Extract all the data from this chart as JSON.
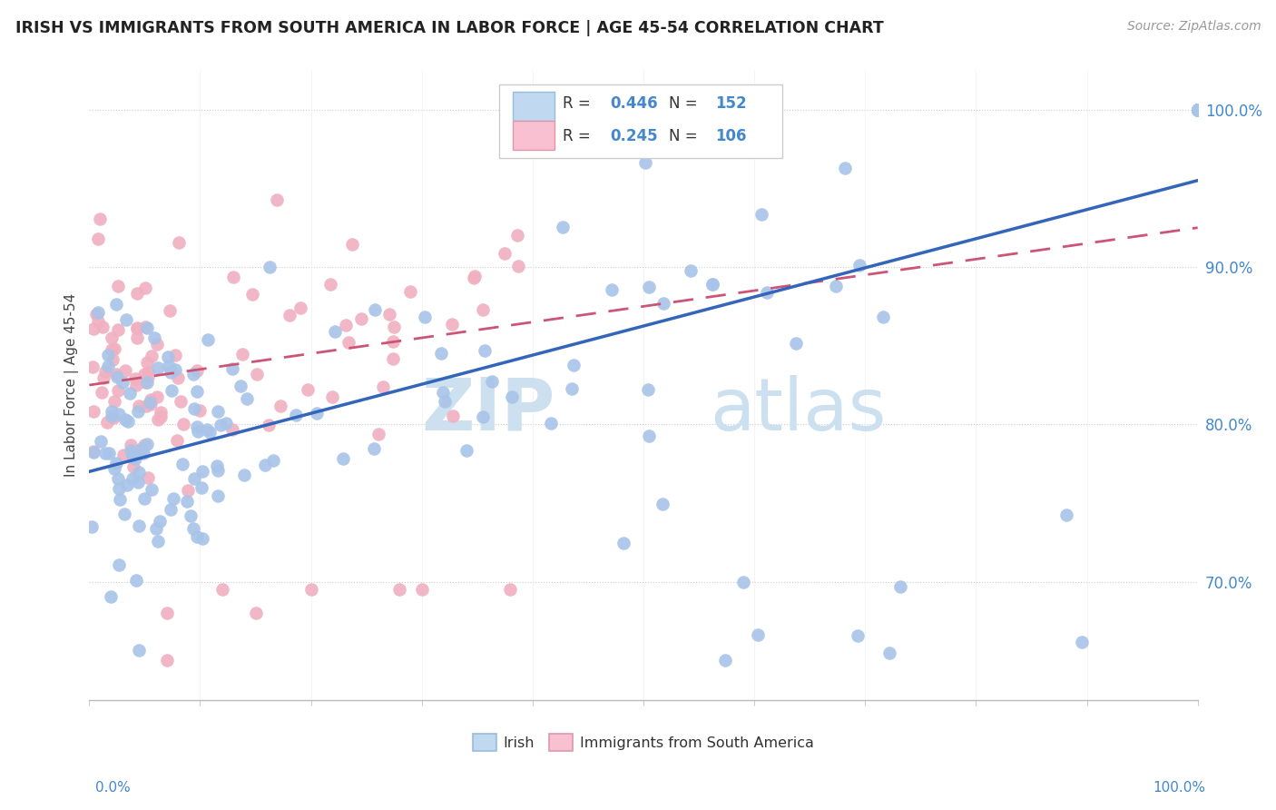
{
  "title": "IRISH VS IMMIGRANTS FROM SOUTH AMERICA IN LABOR FORCE | AGE 45-54 CORRELATION CHART",
  "source": "Source: ZipAtlas.com",
  "ylabel": "In Labor Force | Age 45-54",
  "ytick_labels": [
    "100.0%",
    "90.0%",
    "80.0%",
    "70.0%"
  ],
  "ytick_pos": [
    1.0,
    0.9,
    0.8,
    0.7
  ],
  "xlim": [
    0.0,
    1.0
  ],
  "ylim": [
    0.625,
    1.025
  ],
  "irish_R": 0.446,
  "irish_N": 152,
  "sa_R": 0.245,
  "sa_N": 106,
  "irish_dot_color": "#a8c4e8",
  "sa_dot_color": "#f0b0c0",
  "irish_line_color": "#3366bb",
  "sa_line_color": "#cc5577",
  "legend_irish_color": "#c0d8f0",
  "legend_sa_color": "#f8c0d0",
  "text_blue": "#4488cc",
  "watermark_color": "#cce0f0",
  "bg_color": "#ffffff",
  "grid_color": "#e0e0e0",
  "grid_dot_color": "#cccccc",
  "irish_line_start_y": 0.77,
  "irish_line_end_y": 0.955,
  "sa_line_start_y": 0.825,
  "sa_line_end_y": 0.925
}
